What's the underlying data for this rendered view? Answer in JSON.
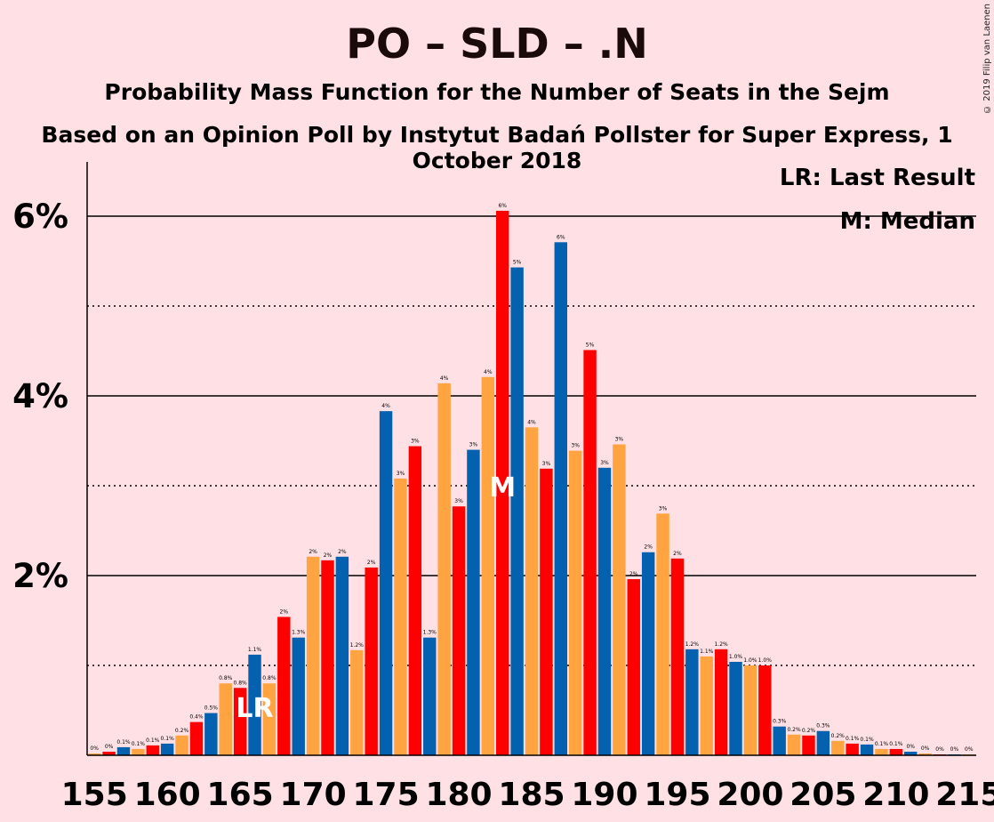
{
  "header": {
    "title": "PO – SLD – .N",
    "subtitle": "Probability Mass Function for the Number of Seats in the Sejm",
    "source": "Based on an Opinion Poll by Instytut Badań Pollster for Super Express, 1 October 2018",
    "copyright": "© 2019 Filip van Laenen"
  },
  "legend": {
    "last_result": "LR: Last Result",
    "median": "M: Median"
  },
  "markers": {
    "last_result_label": "LR",
    "last_result_seat": 166,
    "median_label": "M",
    "median_seat": 183
  },
  "colors": {
    "blue": "#0461B0",
    "orange": "#FFA440",
    "red": "#FF0000",
    "background": "#FFE1E5"
  },
  "chart_data": {
    "type": "bar",
    "title": "PO – SLD – .N",
    "xlabel": "",
    "ylabel": "",
    "x_ticks": [
      155,
      160,
      165,
      170,
      175,
      180,
      185,
      190,
      195,
      200,
      205,
      210,
      215
    ],
    "y_ticks": [
      "2%",
      "4%",
      "6%"
    ],
    "ylim": [
      0,
      6.6
    ],
    "xlim": [
      154.5,
      215.5
    ],
    "grid": "solid lines at 2, 4, 6 %; dotted at 1, 3, 5 %",
    "color_cycle": [
      "orange",
      "red",
      "blue"
    ],
    "first_seat": 155,
    "values": [
      0.02,
      0.04,
      0.09,
      0.07,
      0.11,
      0.13,
      0.22,
      0.37,
      0.47,
      0.8,
      0.75,
      1.12,
      0.8,
      1.54,
      1.31,
      2.21,
      2.17,
      2.21,
      1.17,
      2.09,
      3.83,
      3.08,
      3.44,
      1.31,
      4.14,
      2.77,
      3.4,
      4.21,
      6.06,
      5.43,
      3.65,
      3.19,
      5.71,
      3.39,
      4.51,
      3.2,
      3.46,
      1.96,
      2.26,
      2.69,
      2.19,
      1.18,
      1.1,
      1.18,
      1.04,
      1.0,
      1.0,
      0.32,
      0.23,
      0.22,
      0.27,
      0.16,
      0.13,
      0.12,
      0.07,
      0.07,
      0.04,
      0.02,
      0.01,
      0.01,
      0.01
    ],
    "labels": [
      "0%",
      "0%",
      "0.1%",
      "0.1%",
      "0.1%",
      "0.1%",
      "0.2%",
      "0.4%",
      "0.5%",
      "0.8%",
      "0.8%",
      "1.1%",
      "0.8%",
      "2%",
      "1.3%",
      "2%",
      "2%",
      "2%",
      "1.2%",
      "2%",
      "4%",
      "3%",
      "3%",
      "1.3%",
      "4%",
      "3%",
      "3%",
      "4%",
      "6%",
      "5%",
      "4%",
      "3%",
      "6%",
      "3%",
      "5%",
      "3%",
      "3%",
      "2%",
      "2%",
      "3%",
      "2%",
      "1.2%",
      "1.1%",
      "1.2%",
      "1.0%",
      "1.0%",
      "1.0%",
      "0.3%",
      "0.2%",
      "0.2%",
      "0.3%",
      "0.2%",
      "0.1%",
      "0.1%",
      "0.1%",
      "0.1%",
      "0%",
      "0%",
      "0%",
      "0%",
      "0%"
    ]
  }
}
